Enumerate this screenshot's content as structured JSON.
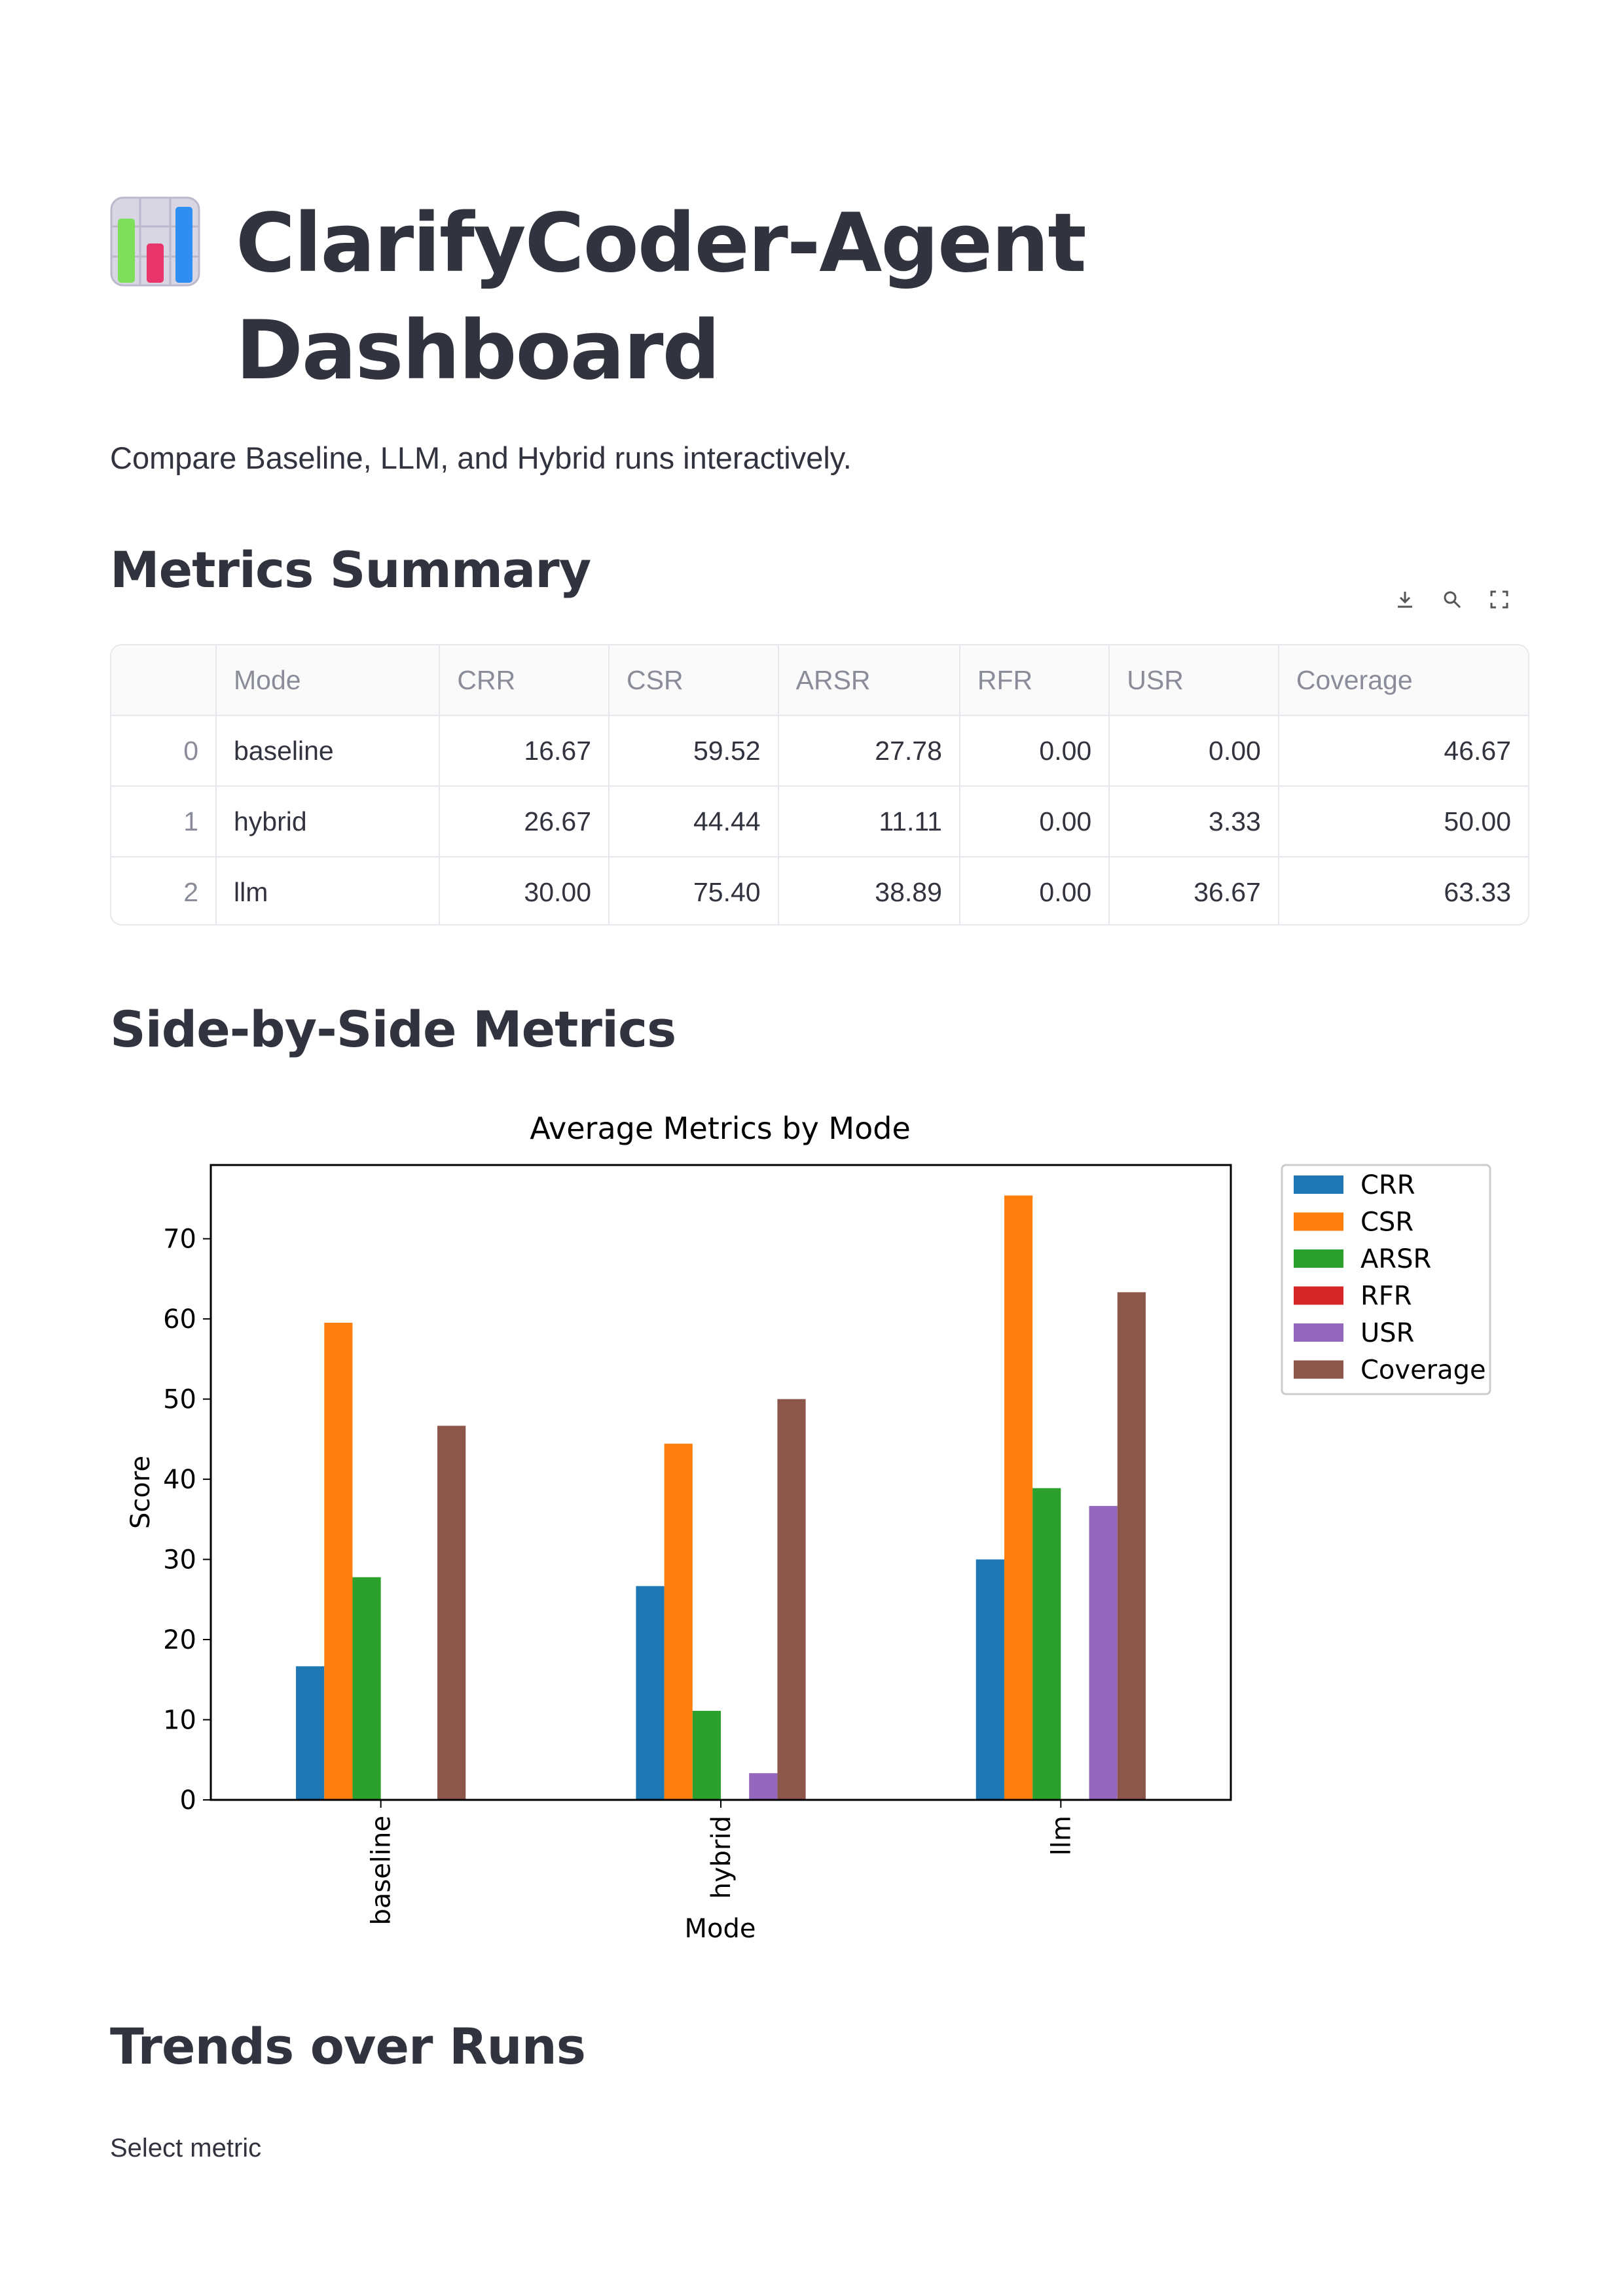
{
  "header": {
    "title": "ClarifyCoder-Agent Dashboard",
    "icon": "bar-chart-icon",
    "subtitle": "Compare Baseline, LLM, and Hybrid runs interactively."
  },
  "sections": {
    "metrics_summary": "Metrics Summary",
    "side_by_side": "Side-by-Side Metrics",
    "trends": "Trends over Runs"
  },
  "toolbar": {
    "download": "download-icon",
    "search": "search-icon",
    "fullscreen": "fullscreen-icon"
  },
  "table": {
    "columns": [
      "",
      "Mode",
      "CRR",
      "CSR",
      "ARSR",
      "RFR",
      "USR",
      "Coverage"
    ],
    "rows": [
      [
        "0",
        "baseline",
        "16.67",
        "59.52",
        "27.78",
        "0.00",
        "0.00",
        "46.67"
      ],
      [
        "1",
        "hybrid",
        "26.67",
        "44.44",
        "11.11",
        "0.00",
        "3.33",
        "50.00"
      ],
      [
        "2",
        "llm",
        "30.00",
        "75.40",
        "38.89",
        "0.00",
        "36.67",
        "63.33"
      ]
    ]
  },
  "chart_data": {
    "type": "bar",
    "title": "Average Metrics by Mode",
    "xlabel": "Mode",
    "ylabel": "Score",
    "categories": [
      "baseline",
      "hybrid",
      "llm"
    ],
    "ylim": [
      0,
      79.2
    ],
    "yticks": [
      0,
      10,
      20,
      30,
      40,
      50,
      60,
      70
    ],
    "legend_position": "outside-right-top",
    "grid": false,
    "series": [
      {
        "name": "CRR",
        "color": "#1f77b4",
        "values": [
          16.67,
          26.67,
          30.0
        ]
      },
      {
        "name": "CSR",
        "color": "#ff7f0e",
        "values": [
          59.52,
          44.44,
          75.4
        ]
      },
      {
        "name": "ARSR",
        "color": "#2ca02c",
        "values": [
          27.78,
          11.11,
          38.89
        ]
      },
      {
        "name": "RFR",
        "color": "#d62728",
        "values": [
          0.0,
          0.0,
          0.0
        ]
      },
      {
        "name": "USR",
        "color": "#9467bd",
        "values": [
          0.0,
          3.33,
          36.67
        ]
      },
      {
        "name": "Coverage",
        "color": "#8c564b",
        "values": [
          46.67,
          50.0,
          63.33
        ]
      }
    ]
  },
  "trends": {
    "select_label": "Select metric"
  }
}
